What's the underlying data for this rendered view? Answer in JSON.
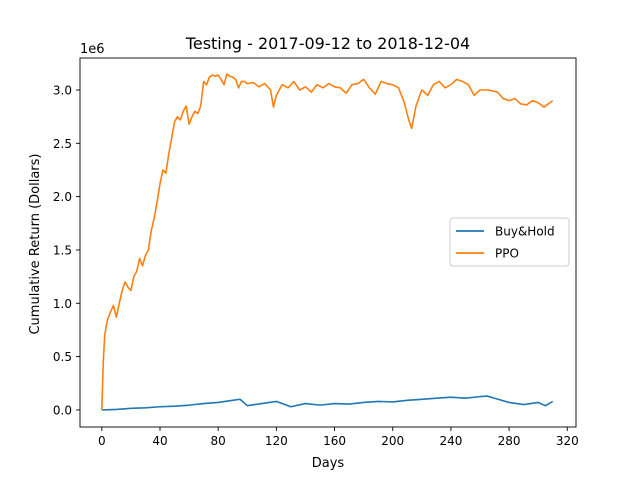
{
  "chart_data": {
    "type": "line",
    "title": "Testing - 2017-09-12 to 2018-12-04",
    "xlabel": "Days",
    "ylabel": "Cumulative Return (Dollars)",
    "y_offset_label": "1e6",
    "xlim": [
      -15,
      326
    ],
    "ylim": [
      -0.16,
      3.3
    ],
    "xticks": [
      0,
      40,
      80,
      120,
      160,
      200,
      240,
      280,
      320
    ],
    "yticks": [
      0.0,
      0.5,
      1.0,
      1.5,
      2.0,
      2.5,
      3.0
    ],
    "ytick_labels": [
      "0.0",
      "0.5",
      "1.0",
      "1.5",
      "2.0",
      "2.5",
      "3.0"
    ],
    "legend_position": "center-right",
    "grid": false,
    "series": [
      {
        "name": "Buy&Hold",
        "color": "#1f77b4",
        "x": [
          0,
          10,
          20,
          30,
          40,
          50,
          60,
          70,
          80,
          90,
          95,
          100,
          105,
          110,
          120,
          130,
          140,
          150,
          160,
          170,
          180,
          190,
          200,
          210,
          220,
          230,
          240,
          250,
          260,
          265,
          270,
          280,
          290,
          300,
          305,
          310
        ],
        "values": [
          0.0,
          0.005,
          0.015,
          0.02,
          0.03,
          0.035,
          0.045,
          0.06,
          0.07,
          0.09,
          0.1,
          0.04,
          0.05,
          0.06,
          0.08,
          0.03,
          0.06,
          0.045,
          0.06,
          0.055,
          0.07,
          0.08,
          0.075,
          0.09,
          0.1,
          0.11,
          0.12,
          0.11,
          0.125,
          0.13,
          0.11,
          0.07,
          0.05,
          0.07,
          0.04,
          0.08
        ]
      },
      {
        "name": "PPO",
        "color": "#ff7f0e",
        "x": [
          0,
          1,
          2,
          3,
          4,
          6,
          8,
          10,
          12,
          14,
          16,
          18,
          20,
          22,
          24,
          26,
          28,
          30,
          32,
          34,
          36,
          38,
          40,
          42,
          44,
          46,
          48,
          50,
          52,
          54,
          56,
          58,
          60,
          62,
          64,
          66,
          68,
          70,
          72,
          74,
          76,
          78,
          80,
          82,
          84,
          86,
          88,
          90,
          92,
          94,
          96,
          98,
          100,
          104,
          108,
          112,
          116,
          118,
          120,
          124,
          128,
          132,
          136,
          140,
          144,
          148,
          152,
          156,
          160,
          164,
          168,
          172,
          176,
          180,
          184,
          188,
          192,
          196,
          200,
          204,
          208,
          211,
          213,
          216,
          220,
          224,
          228,
          232,
          236,
          240,
          244,
          248,
          252,
          256,
          260,
          266,
          272,
          276,
          280,
          284,
          288,
          292,
          296,
          300,
          304,
          308,
          310
        ],
        "values": [
          0.0,
          0.45,
          0.7,
          0.78,
          0.85,
          0.92,
          0.98,
          0.87,
          1.0,
          1.12,
          1.2,
          1.15,
          1.12,
          1.25,
          1.3,
          1.42,
          1.35,
          1.45,
          1.5,
          1.68,
          1.8,
          1.95,
          2.12,
          2.25,
          2.22,
          2.4,
          2.55,
          2.7,
          2.75,
          2.72,
          2.8,
          2.85,
          2.68,
          2.75,
          2.8,
          2.78,
          2.85,
          3.08,
          3.05,
          3.12,
          3.14,
          3.13,
          3.14,
          3.1,
          3.05,
          3.15,
          3.13,
          3.12,
          3.1,
          3.02,
          3.08,
          3.08,
          3.06,
          3.07,
          3.03,
          3.06,
          3.0,
          2.84,
          2.95,
          3.05,
          3.02,
          3.08,
          3.0,
          3.03,
          2.98,
          3.05,
          3.02,
          3.06,
          3.03,
          3.02,
          2.97,
          3.05,
          3.06,
          3.1,
          3.02,
          2.96,
          3.08,
          3.06,
          3.05,
          3.02,
          2.88,
          2.72,
          2.64,
          2.85,
          3.0,
          2.95,
          3.05,
          3.08,
          3.02,
          3.05,
          3.1,
          3.08,
          3.05,
          2.95,
          3.0,
          3.0,
          2.98,
          2.92,
          2.9,
          2.92,
          2.87,
          2.86,
          2.9,
          2.88,
          2.84,
          2.88,
          2.9
        ]
      }
    ]
  }
}
